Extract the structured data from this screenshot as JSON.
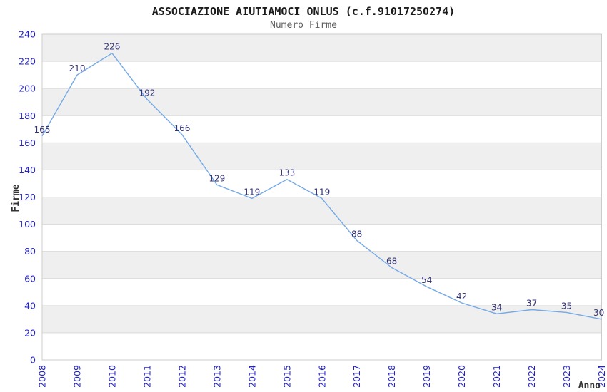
{
  "chart_data": {
    "type": "line",
    "title": "ASSOCIAZIONE AIUTIAMOCI ONLUS (c.f.91017250274)",
    "subtitle": "Numero Firme",
    "xlabel": "Anno",
    "ylabel": "Firme",
    "categories": [
      "2008",
      "2009",
      "2010",
      "2011",
      "2012",
      "2013",
      "2014",
      "2015",
      "2016",
      "2017",
      "2018",
      "2019",
      "2020",
      "2021",
      "2022",
      "2023",
      "2024"
    ],
    "series": [
      {
        "name": "Numero Firme",
        "values": [
          165,
          210,
          226,
          192,
          166,
          129,
          119,
          133,
          119,
          88,
          68,
          54,
          42,
          34,
          37,
          35,
          30
        ]
      }
    ],
    "ylim": [
      0,
      240
    ],
    "ytick_step": 20,
    "yticks": [
      0,
      20,
      40,
      60,
      80,
      100,
      120,
      140,
      160,
      180,
      200,
      220,
      240
    ],
    "grid": "horizontal",
    "legend": "none",
    "background_bands": "alternating gray/white every 20 units, gray on 20-40, 60-80, 100-120, 140-160, 180-200, 220-240",
    "point_labels_visible": true
  },
  "style": {
    "line_color": "#74a9e6",
    "point_label_color": "#333377",
    "tick_label_color": "#2323cc",
    "axis_title_color": "#333333",
    "band_gray": "#efefef",
    "band_white": "#ffffff",
    "grid_color": "#d9d9d9",
    "border_color": "#cccccc",
    "title_color": "#1c1c1c",
    "subtitle_color": "#5f5f5f"
  }
}
